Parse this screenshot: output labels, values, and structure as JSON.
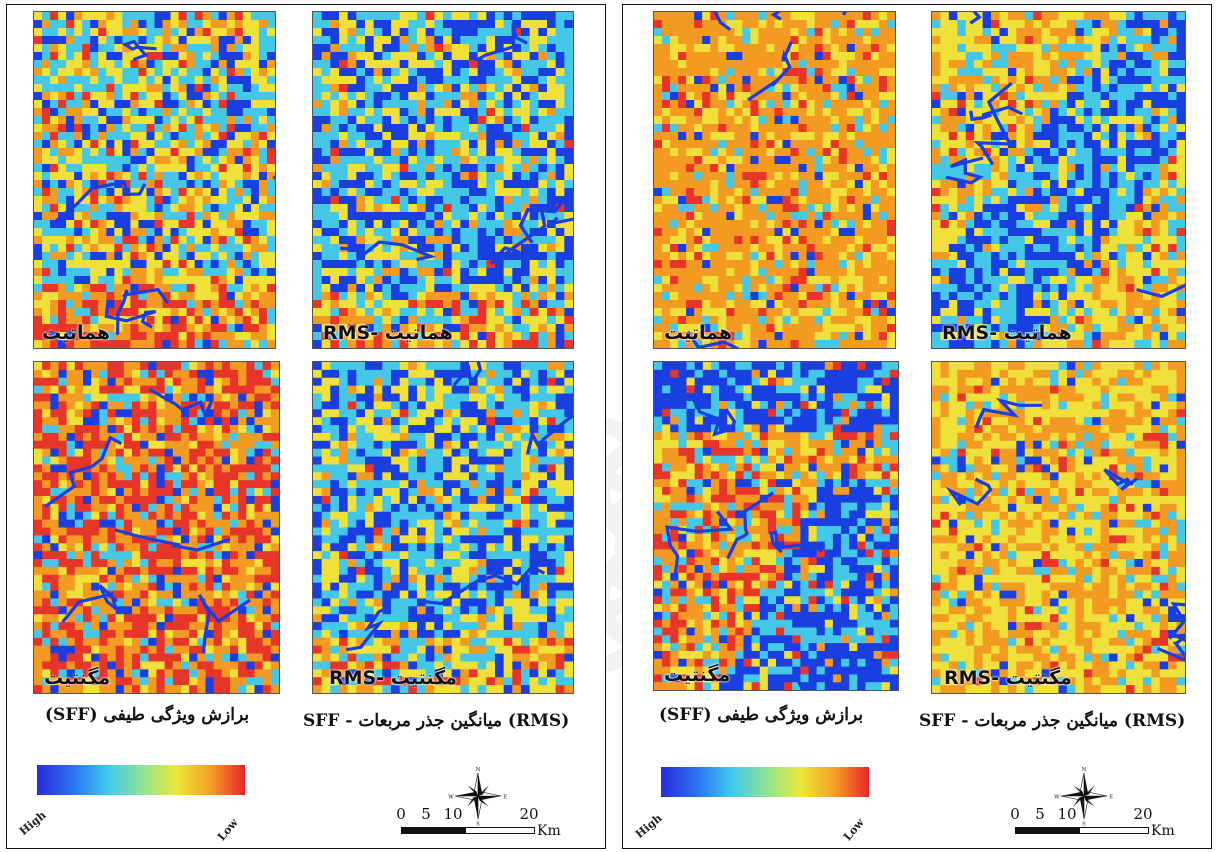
{
  "labels": {
    "hematite": "هماتیت",
    "rms_hematite": "RMS- هماتیت",
    "magnetite": "مگنتیت",
    "rms_magnetite": "RMS- مگنتیت"
  },
  "captions": {
    "sff": "برازش ویژگی طیفی (SFF)",
    "rms_sff": "(RMS) میانگین جذر مربعات - SFF"
  },
  "legend": {
    "high": "High",
    "low": "Low",
    "gradient_colors": [
      "#2a2ad8",
      "#2a6ef0",
      "#3fc8ee",
      "#8be39a",
      "#e9ea3a",
      "#f7a024",
      "#e8242a"
    ]
  },
  "scale_bar": {
    "ticks": [
      "0",
      "5",
      "10",
      "20"
    ],
    "unit": "Km"
  },
  "compass": {
    "n": "N",
    "s": "S",
    "e": "E",
    "w": "W"
  },
  "map_palette": {
    "blue": "#1a3fe0",
    "cyan": "#45c8e8",
    "yellow": "#f0e03a",
    "orange": "#f39a22",
    "red": "#e8352a"
  }
}
